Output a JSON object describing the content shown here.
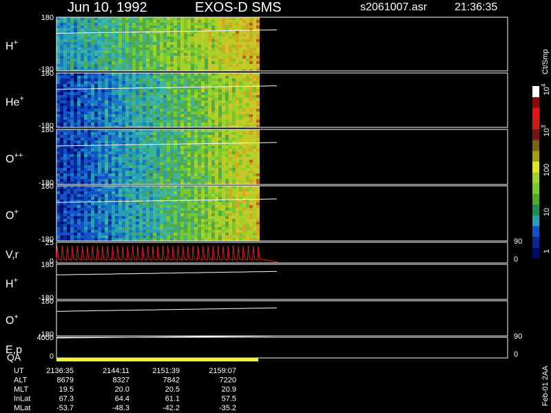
{
  "header": {
    "date": "Jun 10, 1992",
    "instrument": "EXOS-D SMS",
    "file": "s2061007.asr",
    "time": "21:36:35"
  },
  "panels": [
    {
      "label": "H",
      "sup": "+",
      "left_ticks": [
        180,
        -180
      ]
    },
    {
      "label": "He",
      "sup": "+",
      "left_ticks": [
        180,
        -180
      ]
    },
    {
      "label": "O",
      "sup": "++",
      "left_ticks": [
        180,
        -180
      ]
    },
    {
      "label": "O",
      "sup": "+",
      "left_ticks": [
        180,
        -180
      ]
    },
    {
      "label": "V,r",
      "left_ticks": [
        25,
        0
      ],
      "right_ticks": [
        90,
        0
      ]
    },
    {
      "label": "H",
      "sup": "+",
      "left_ticks": [
        180,
        -180
      ]
    },
    {
      "label": "O",
      "sup": "+",
      "left_ticks": [
        180,
        -180
      ]
    },
    {
      "label": "E,p",
      "left_ticks": [
        4000,
        0
      ],
      "right_ticks": [
        90,
        0
      ]
    }
  ],
  "qa_label": "QA",
  "colorbar": {
    "unit": "Ct/Smp",
    "labels": [
      {
        "text": "10",
        "sup": "4"
      },
      {
        "text": "10",
        "sup": "3"
      },
      {
        "text": "100"
      },
      {
        "text": "10"
      },
      {
        "text": "1"
      }
    ]
  },
  "table": {
    "rows": [
      {
        "name": "UT",
        "values": [
          "2136:35",
          "2144:11",
          "2151:39",
          "2159:07"
        ]
      },
      {
        "name": "ALT",
        "values": [
          "8679",
          "8327",
          "7842",
          "7220"
        ]
      },
      {
        "name": "MLT",
        "values": [
          "19.5",
          "20.0",
          "20.5",
          "20.9"
        ]
      },
      {
        "name": "InLat",
        "values": [
          "67.3",
          "64.4",
          "61.1",
          "57.5"
        ]
      },
      {
        "name": "MLat",
        "values": [
          "-53.7",
          "-48.3",
          "-42.2",
          "-35.2"
        ]
      }
    ]
  },
  "footer": "Feb-01 2AA"
}
